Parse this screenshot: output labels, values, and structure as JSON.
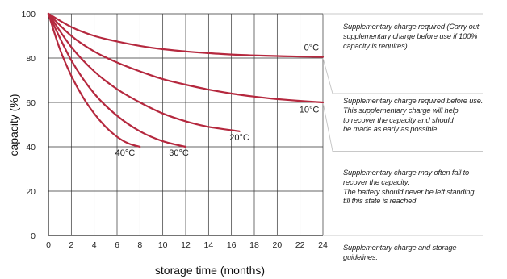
{
  "chart_data": {
    "type": "line",
    "xlabel": "storage time (months)",
    "ylabel": "capacity (%)",
    "xlim": [
      0,
      24
    ],
    "ylim": [
      0,
      100
    ],
    "xticks": [
      0,
      2,
      4,
      6,
      8,
      10,
      12,
      14,
      16,
      18,
      20,
      22,
      24
    ],
    "yticks": [
      0,
      20,
      40,
      60,
      80,
      100
    ],
    "grid": true,
    "series": [
      {
        "name": "0°C",
        "color": "#b5283e",
        "x": [
          0,
          2,
          4,
          6,
          8,
          10,
          12,
          14,
          16,
          18,
          20,
          22,
          24
        ],
        "y": [
          100,
          94,
          90,
          87.5,
          85.5,
          84,
          83,
          82.2,
          81.6,
          81.2,
          80.9,
          80.7,
          80.5
        ]
      },
      {
        "name": "10°C",
        "color": "#b5283e",
        "x": [
          0,
          2,
          4,
          6,
          8,
          10,
          12,
          14,
          16,
          18,
          20,
          22,
          24
        ],
        "y": [
          100,
          90,
          83,
          78,
          74,
          70.5,
          68,
          65.8,
          64,
          62.6,
          61.5,
          60.7,
          60
        ]
      },
      {
        "name": "20°C",
        "color": "#b5283e",
        "x": [
          0,
          2,
          4,
          6,
          8,
          10,
          12,
          14,
          16.7
        ],
        "y": [
          100,
          85,
          74,
          66,
          60,
          55,
          51.5,
          49,
          47
        ]
      },
      {
        "name": "30°C",
        "color": "#b5283e",
        "x": [
          0,
          2,
          4,
          6,
          8,
          10,
          12
        ],
        "y": [
          100,
          79,
          64,
          54,
          47,
          42.5,
          40
        ]
      },
      {
        "name": "40°C",
        "color": "#b5283e",
        "x": [
          0,
          1,
          2,
          3,
          4,
          5,
          6,
          7,
          8
        ],
        "y": [
          100,
          84,
          72,
          62.5,
          55,
          49,
          44.5,
          41.5,
          40
        ]
      }
    ],
    "labels": [
      {
        "text": "0°C",
        "x": 23,
        "y": 83.5
      },
      {
        "text": "10°C",
        "x": 22.8,
        "y": 55.5
      },
      {
        "text": "20°C",
        "x": 16.7,
        "y": 43
      },
      {
        "text": "30°C",
        "x": 11.4,
        "y": 36
      },
      {
        "text": "40°C",
        "x": 6.7,
        "y": 36
      }
    ],
    "guidelines": [
      "Supplementary charge required (Carry out supplementary charge before use if 100% capacity is requires).",
      "Supplementary charge required before use. This supplementary charge will help to recover the capacity and should be made as early as possible.",
      "Supplementary charge may often fail to recover the capacity. The battery should never be left standing till this state is reached",
      "Supplementary charge and storage guidelines."
    ]
  },
  "notes": {
    "n1": [
      "Supplementary charge required (Carry out",
      "supplementary charge before use if 100%",
      "capacity is requires)."
    ],
    "n2": [
      "Supplementary charge required before use.",
      "This supplementary charge will help",
      "to recover the capacity and should",
      "be made as early as possible."
    ],
    "n3": [
      "Supplementary charge may often fail to",
      "recover the capacity.",
      "The battery should never be left standing",
      "till this state is reached"
    ],
    "n4": [
      "Supplementary charge and storage",
      "guidelines."
    ]
  }
}
